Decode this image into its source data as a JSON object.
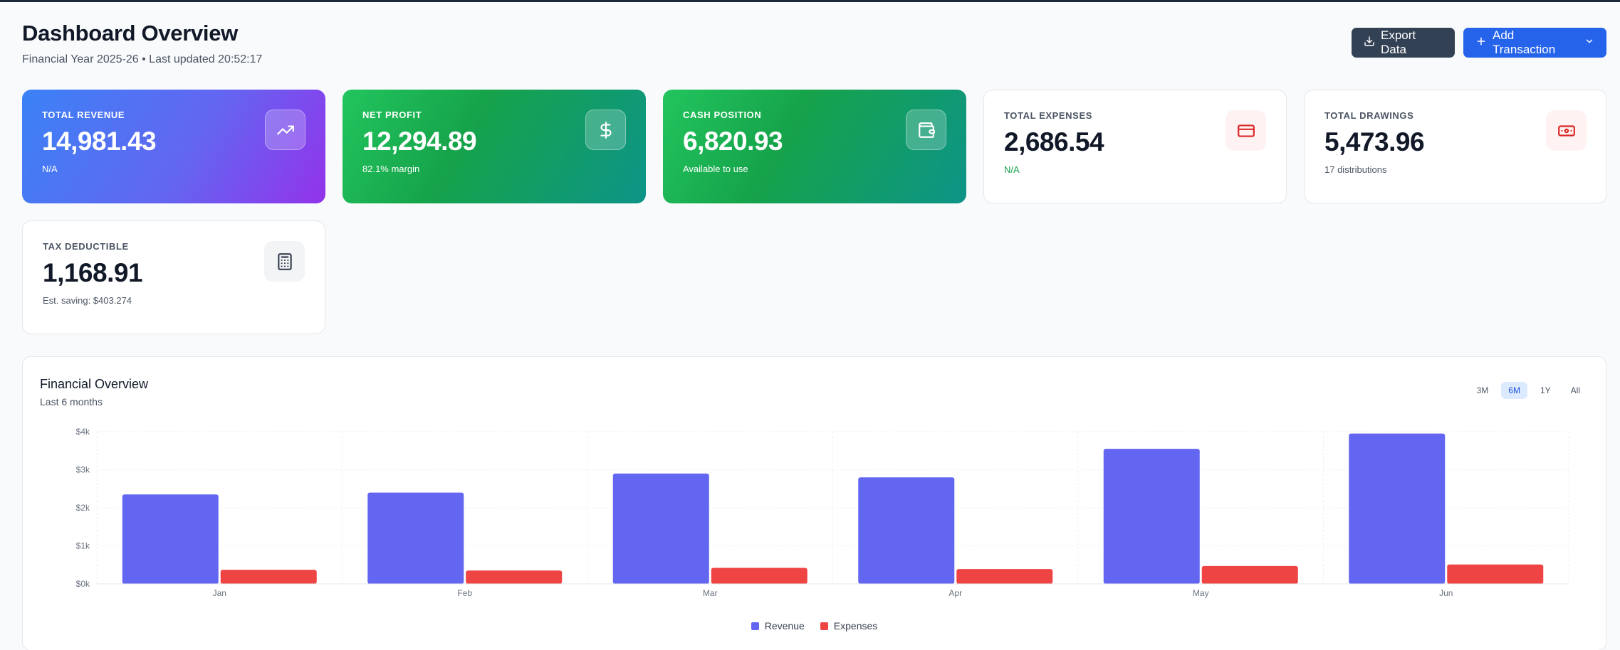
{
  "header": {
    "title": "Dashboard Overview",
    "subtitle": "Financial Year 2025-26 • Last updated 20:52:17"
  },
  "actions": {
    "export_label": "Export Data",
    "add_label": "Add Transaction"
  },
  "cards": [
    {
      "label": "TOTAL REVENUE",
      "value": "14,981.43",
      "note": "N/A",
      "icon": "trending-up-icon"
    },
    {
      "label": "NET PROFIT",
      "value": "12,294.89",
      "note": "82.1% margin",
      "icon": "dollar-icon"
    },
    {
      "label": "CASH POSITION",
      "value": "6,820.93",
      "note": "Available to use",
      "icon": "wallet-icon"
    },
    {
      "label": "TOTAL EXPENSES",
      "value": "2,686.54",
      "note": "N/A",
      "icon": "credit-card-icon"
    },
    {
      "label": "TOTAL DRAWINGS",
      "value": "5,473.96",
      "note": "17 distributions",
      "icon": "banknote-icon"
    },
    {
      "label": "TAX DEDUCTIBLE",
      "value": "1,168.91",
      "note": "Est. saving: $403.274",
      "icon": "calculator-icon"
    }
  ],
  "colors": {
    "revenue": "#6366f1",
    "expenses": "#ef4444",
    "primary": "#2563eb",
    "dark_button": "#334155"
  },
  "chart_panel": {
    "title": "Financial Overview",
    "subtitle": "Last 6 months",
    "ranges": [
      "3M",
      "6M",
      "1Y",
      "All"
    ],
    "active_range": "6M"
  },
  "chart_data": {
    "type": "bar",
    "categories": [
      "Jan",
      "Feb",
      "Mar",
      "Apr",
      "May",
      "Jun"
    ],
    "series": [
      {
        "name": "Revenue",
        "values": [
          2350,
          2400,
          2900,
          2800,
          3550,
          3950
        ]
      },
      {
        "name": "Expenses",
        "values": [
          370,
          350,
          420,
          390,
          470,
          510
        ]
      }
    ],
    "yticks": [
      "$0k",
      "$1k",
      "$2k",
      "$3k",
      "$4k"
    ],
    "ylim": [
      0,
      4000
    ],
    "grid": true,
    "legend": "bottom"
  }
}
